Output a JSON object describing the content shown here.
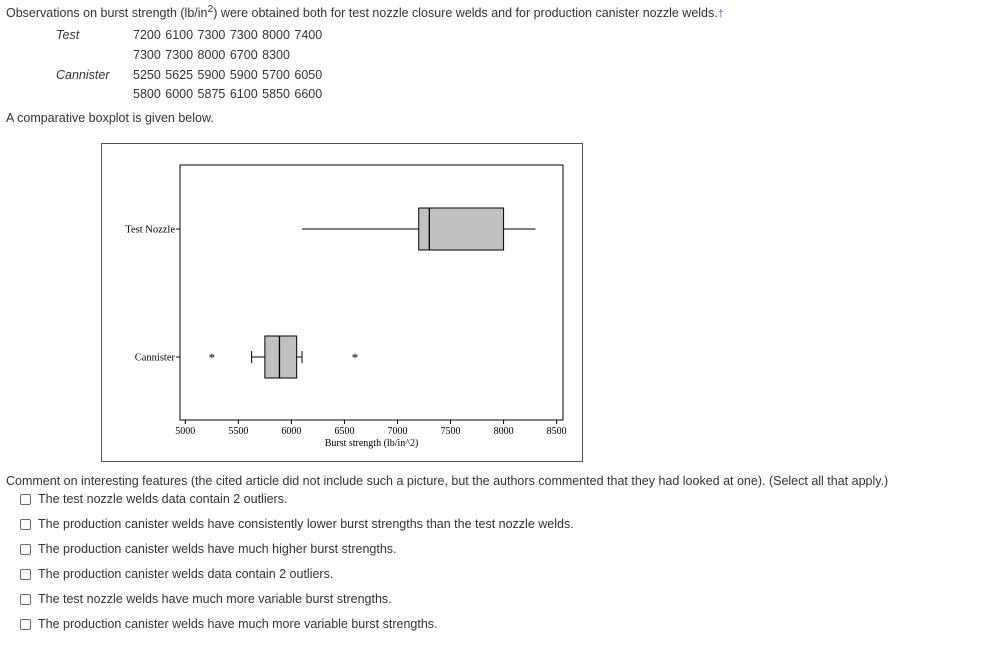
{
  "problem": {
    "intro_pre": "Observations on burst strength (lb/in",
    "intro_sup": "2",
    "intro_post": ") were obtained both for test nozzle closure welds and for production canister nozzle welds.",
    "dagger": "†",
    "test_label": "Test",
    "test_row1": "7200 6100 7300 7300 8000 7400",
    "test_row2": "7300 7300 8000 6700 8300",
    "canister_label": "Cannister",
    "canister_row1": "5250 5625 5900 5900 5700 6050",
    "canister_row2": "5800 6000 5875 6100 5850 6600",
    "after_text": "A comparative boxplot is given below."
  },
  "chart_data": {
    "type": "boxplot",
    "orientation": "horizontal",
    "xlabel": "Burst strength (lb/in^2)",
    "xlim": [
      4950,
      8560
    ],
    "x_ticks": [
      5000,
      5500,
      6000,
      6500,
      7000,
      7500,
      8000,
      8500
    ],
    "grid": false,
    "series": [
      {
        "name": "Test Nozzle",
        "whisker_low": 6100,
        "q1": 7200,
        "median": 7300,
        "q3": 8000,
        "whisker_high": 8300,
        "outliers": []
      },
      {
        "name": "Cannister",
        "whisker_low": 5625,
        "q1": 5750,
        "median": 5887.5,
        "q3": 6050,
        "whisker_high": 6100,
        "outliers": [
          5250,
          6600
        ]
      }
    ]
  },
  "question": {
    "text": "Comment on interesting features (the cited article did not include such a picture, but the authors commented that they had looked at one). (Select all that apply.)",
    "options": [
      "The test nozzle welds data contain 2 outliers.",
      "The production canister welds have consistently lower burst strengths than the test nozzle welds.",
      "The production canister welds have much higher burst strengths.",
      "The production canister welds data contain 2 outliers.",
      "The test nozzle welds have much more variable burst strengths.",
      "The production canister welds have much more variable burst strengths."
    ]
  }
}
